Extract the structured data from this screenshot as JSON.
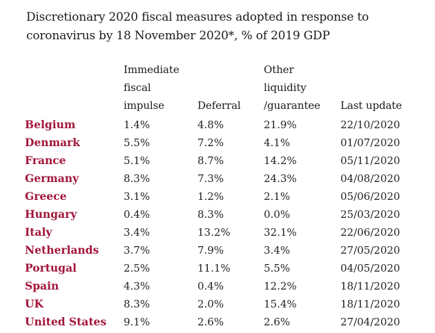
{
  "chart_data": {
    "type": "table",
    "title_line1": "Discretionary 2020 fiscal measures adopted in response to",
    "title_line2": "coronavirus by 18 November 2020*, % of 2019 GDP",
    "columns": [
      {
        "lines": [
          "Immediate",
          "fiscal",
          "impulse"
        ]
      },
      {
        "lines": [
          "Deferral"
        ]
      },
      {
        "lines": [
          "Other",
          "liquidity",
          "/guarantee"
        ]
      },
      {
        "lines": [
          "Last update"
        ]
      }
    ],
    "rows": [
      {
        "country": "Belgium",
        "impulse": "1.4%",
        "deferral": "4.8%",
        "liquidity": "21.9%",
        "updated": "22/10/2020"
      },
      {
        "country": "Denmark",
        "impulse": "5.5%",
        "deferral": "7.2%",
        "liquidity": "4.1%",
        "updated": "01/07/2020"
      },
      {
        "country": "France",
        "impulse": "5.1%",
        "deferral": "8.7%",
        "liquidity": "14.2%",
        "updated": "05/11/2020"
      },
      {
        "country": "Germany",
        "impulse": "8.3%",
        "deferral": "7.3%",
        "liquidity": "24.3%",
        "updated": "04/08/2020"
      },
      {
        "country": "Greece",
        "impulse": "3.1%",
        "deferral": "1.2%",
        "liquidity": "2.1%",
        "updated": "05/06/2020"
      },
      {
        "country": "Hungary",
        "impulse": "0.4%",
        "deferral": "8.3%",
        "liquidity": "0.0%",
        "updated": "25/03/2020"
      },
      {
        "country": "Italy",
        "impulse": "3.4%",
        "deferral": "13.2%",
        "liquidity": "32.1%",
        "updated": "22/06/2020"
      },
      {
        "country": "Netherlands",
        "impulse": "3.7%",
        "deferral": "7.9%",
        "liquidity": "3.4%",
        "updated": "27/05/2020"
      },
      {
        "country": "Portugal",
        "impulse": "2.5%",
        "deferral": "11.1%",
        "liquidity": "5.5%",
        "updated": "04/05/2020"
      },
      {
        "country": "Spain",
        "impulse": "4.3%",
        "deferral": "0.4%",
        "liquidity": "12.2%",
        "updated": "18/11/2020"
      },
      {
        "country": "UK",
        "impulse": "8.3%",
        "deferral": "2.0%",
        "liquidity": "15.4%",
        "updated": "18/11/2020"
      },
      {
        "country": "United States",
        "impulse": "9.1%",
        "deferral": "2.6%",
        "liquidity": "2.6%",
        "updated": "27/04/2020"
      }
    ]
  },
  "colors": {
    "country_text": "#a3163a",
    "body_text": "#1a1a1a"
  }
}
